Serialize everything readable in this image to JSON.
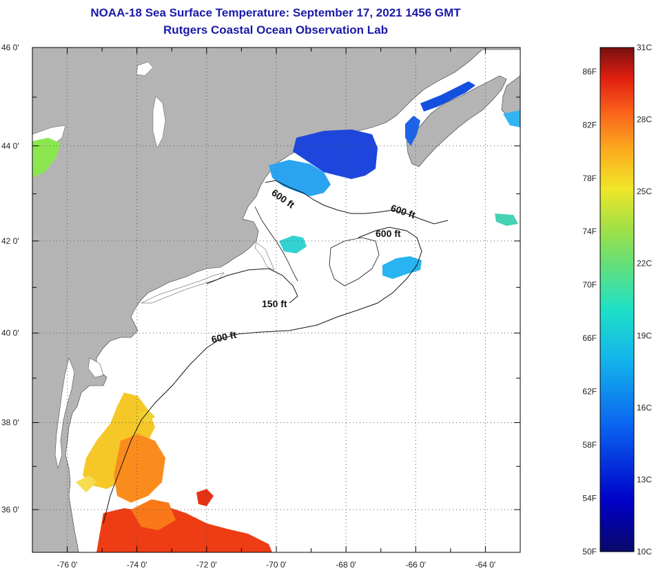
{
  "header": {
    "title_line1": "NOAA-18 Sea Surface Temperature:  September 17, 2021 1456 GMT",
    "title_line2": "Rutgers Coastal Ocean Observation Lab"
  },
  "map": {
    "lat_labels": [
      {
        "value": 46,
        "label": "46 0'"
      },
      {
        "value": 44,
        "label": "44 0'"
      },
      {
        "value": 42,
        "label": "42 0'"
      },
      {
        "value": 40,
        "label": "40 0'"
      },
      {
        "value": 38,
        "label": "38 0'"
      },
      {
        "value": 36,
        "label": "36 0'"
      }
    ],
    "lon_labels": [
      {
        "value": -76,
        "label": "-76 0'"
      },
      {
        "value": -74,
        "label": "-74 0'"
      },
      {
        "value": -72,
        "label": "-72 0'"
      },
      {
        "value": -70,
        "label": "-70 0'"
      },
      {
        "value": -68,
        "label": "-68 0'"
      },
      {
        "value": -66,
        "label": "-66 0'"
      },
      {
        "value": -64,
        "label": "-64 0'"
      }
    ],
    "contour_labels": {
      "a": "600 ft",
      "b": "600 ft",
      "c": "600 ft",
      "d": "150 ft",
      "e": "600 ft"
    },
    "colors": {
      "land": "#b4b4b4",
      "ocean": "#ffffff",
      "grid": "#555555"
    }
  },
  "colorbar": {
    "celsius": [
      {
        "value": 31,
        "label": "31C"
      },
      {
        "value": 28,
        "label": "28C"
      },
      {
        "value": 25,
        "label": "25C"
      },
      {
        "value": 22,
        "label": "22C"
      },
      {
        "value": 19,
        "label": "19C"
      },
      {
        "value": 16,
        "label": "16C"
      },
      {
        "value": 13,
        "label": "13C"
      },
      {
        "value": 10,
        "label": "10C"
      }
    ],
    "fahrenheit": [
      {
        "value": 86,
        "label": "86F"
      },
      {
        "value": 82,
        "label": "82F"
      },
      {
        "value": 78,
        "label": "78F"
      },
      {
        "value": 74,
        "label": "74F"
      },
      {
        "value": 70,
        "label": "70F"
      },
      {
        "value": 66,
        "label": "66F"
      },
      {
        "value": 62,
        "label": "62F"
      },
      {
        "value": 58,
        "label": "58F"
      },
      {
        "value": 54,
        "label": "54F"
      },
      {
        "value": 50,
        "label": "50F"
      }
    ]
  }
}
